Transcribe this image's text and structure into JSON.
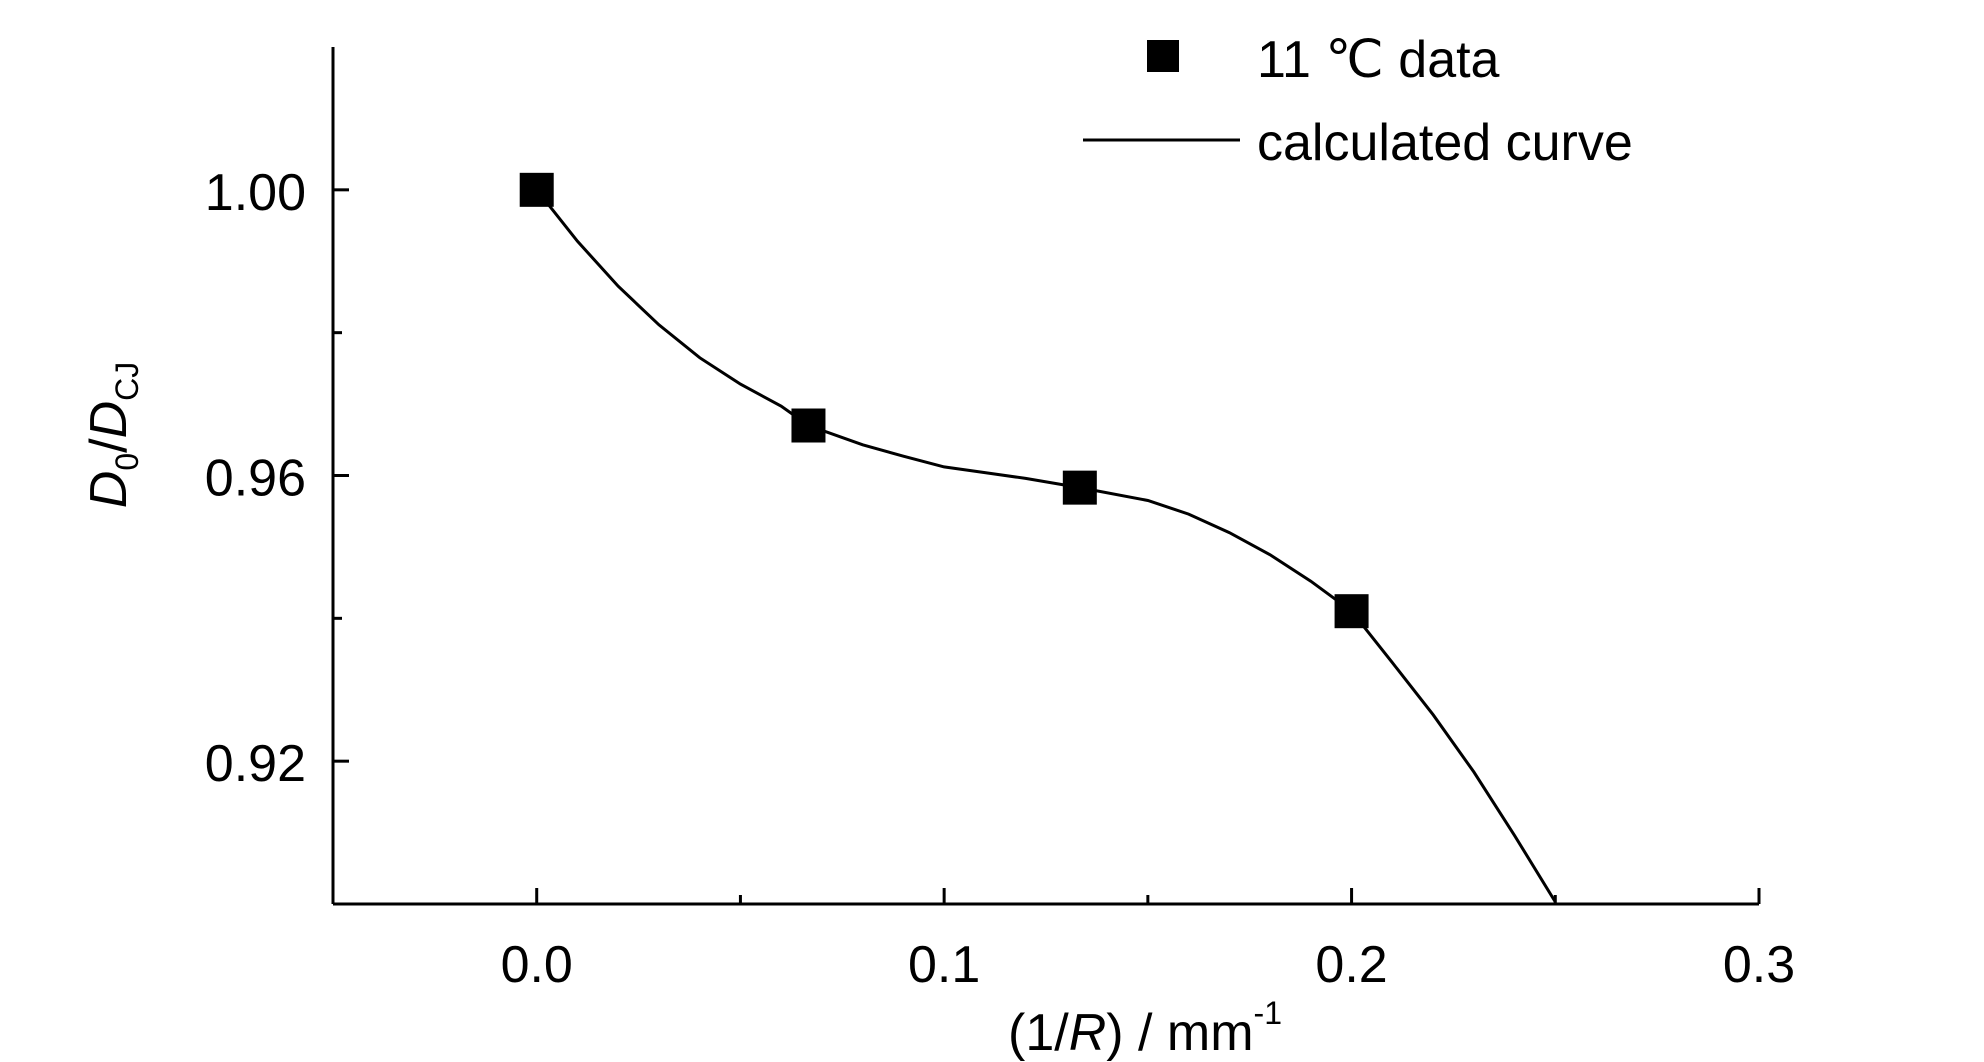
{
  "chart_data": {
    "type": "scatter",
    "xlabel_parts": {
      "pre": "(1/",
      "italic": "R",
      "post": ") / mm",
      "sup": "-1"
    },
    "ylabel_parts": {
      "d1": "D",
      "sub1": "0",
      "slash": "/",
      "d2": "D",
      "sub2": "CJ"
    },
    "xlim": [
      -0.05,
      0.3
    ],
    "ylim": [
      0.9,
      1.02
    ],
    "x_ticks_major": [
      0.0,
      0.1,
      0.2,
      0.3
    ],
    "x_tick_labels": [
      "0.0",
      "0.1",
      "0.2",
      "0.3"
    ],
    "x_ticks_minor": [
      -0.05,
      0.05,
      0.15,
      0.25
    ],
    "y_ticks_major": [
      0.92,
      0.96,
      1.0
    ],
    "y_tick_labels": [
      "0.92",
      "0.96",
      "1.00"
    ],
    "y_ticks_minor": [
      0.94,
      0.98
    ],
    "legend": {
      "placement": "top-right",
      "entries": [
        {
          "label": "11 ℃  data",
          "symbol": "square"
        },
        {
          "label": "calculated curve",
          "symbol": "line"
        }
      ]
    },
    "series": [
      {
        "name": "11 ℃  data",
        "kind": "scatter",
        "x": [
          0.0,
          0.0667,
          0.1333,
          0.2
        ],
        "y": [
          1.0,
          0.967,
          0.9583,
          0.941
        ]
      },
      {
        "name": "calculated curve",
        "kind": "line",
        "x": [
          0.0,
          0.01,
          0.02,
          0.03,
          0.04,
          0.05,
          0.06,
          0.0667,
          0.08,
          0.09,
          0.1,
          0.11,
          0.12,
          0.1333,
          0.15,
          0.16,
          0.17,
          0.18,
          0.19,
          0.2,
          0.21,
          0.22,
          0.23,
          0.24,
          0.25
        ],
        "y": [
          1.0,
          0.9928,
          0.9865,
          0.9811,
          0.9765,
          0.9728,
          0.9697,
          0.967,
          0.9643,
          0.9627,
          0.9612,
          0.9604,
          0.9596,
          0.9583,
          0.9565,
          0.9546,
          0.952,
          0.9489,
          0.9452,
          0.941,
          0.9338,
          0.9265,
          0.9185,
          0.9096,
          0.9003
        ]
      }
    ]
  }
}
